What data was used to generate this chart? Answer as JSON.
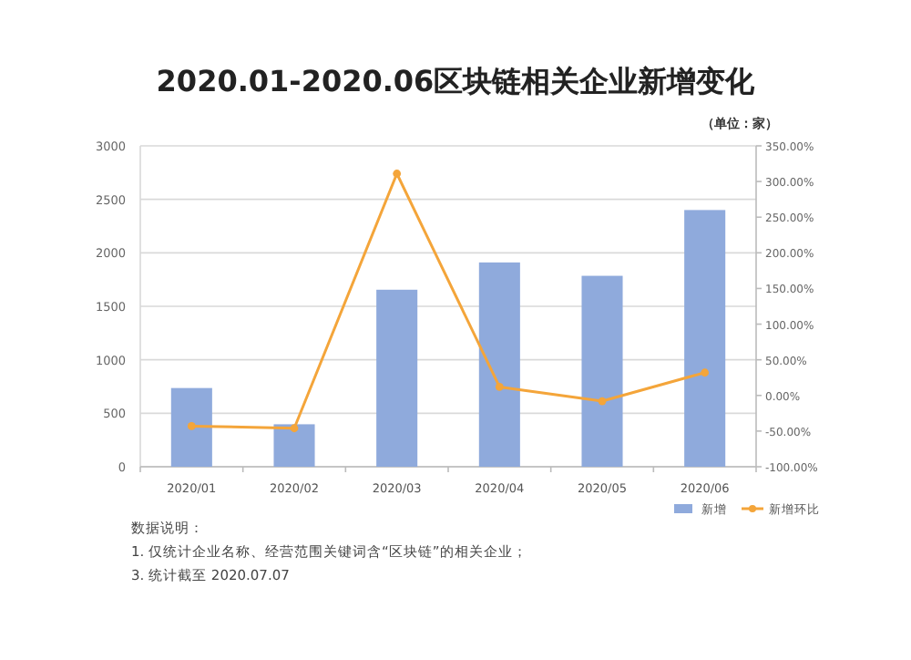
{
  "chart_data": {
    "type": "bar",
    "title": "2020.01-2020.06区块链相关企业新增变化",
    "categories": [
      "2020/01",
      "2020/02",
      "2020/03",
      "2020/04",
      "2020/05",
      "2020/06"
    ],
    "series": [
      {
        "name": "新增",
        "color": "#8faadc",
        "values": [
          736,
          397,
          1655,
          1910,
          1785,
          2400
        ]
      },
      {
        "name": "新增环比",
        "type": "line",
        "axis": "y2",
        "color": "#f4a53a",
        "marker": "circle",
        "line_style": "solid",
        "values": [
          -43,
          -46,
          311,
          12,
          -8,
          32
        ]
      }
    ],
    "ylim": [
      0,
      3000
    ],
    "yticks": [
      0,
      500,
      1000,
      1500,
      2000,
      2500,
      3000
    ],
    "y2lim": [
      -100,
      350
    ],
    "y2ticks": [
      {
        "value": -100,
        "label": "-100.00%"
      },
      {
        "value": -50,
        "label": "-50.00%"
      },
      {
        "value": 0,
        "label": "0.00%"
      },
      {
        "value": 50,
        "label": "50.00%"
      },
      {
        "value": 100,
        "label": "100.00%"
      },
      {
        "value": 150,
        "label": "150.00%"
      },
      {
        "value": 200,
        "label": "200.00%"
      },
      {
        "value": 250,
        "label": "250.00%"
      },
      {
        "value": 300,
        "label": "300.00%"
      },
      {
        "value": 350,
        "label": "350.00%"
      }
    ],
    "grid": "y",
    "legend": "bottom right",
    "annotations": [
      "（单位：家）",
      "数据说明：",
      "1. 仅统计企业名称、经营范围关键词含“区块链”的相关企业；",
      "3. 统计截至 2020.07.07"
    ]
  }
}
